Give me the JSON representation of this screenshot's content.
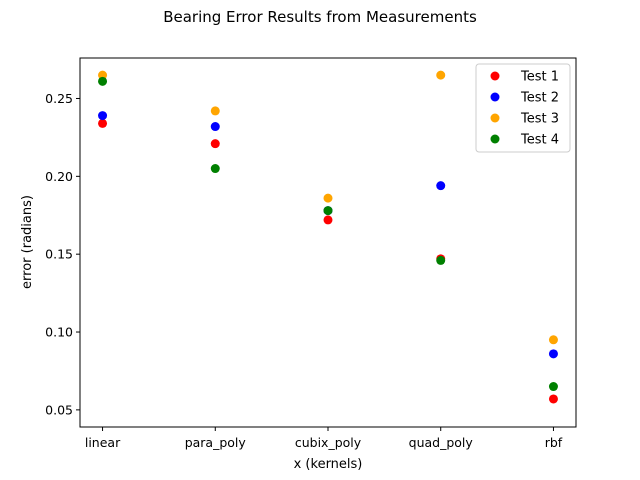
{
  "chart_data": {
    "type": "scatter",
    "title": "Bearing Error Results from Measurements",
    "xlabel": "x (kernels)",
    "ylabel": "error (radians)",
    "categories": [
      "linear",
      "para_poly",
      "cubix_poly",
      "quad_poly",
      "rbf"
    ],
    "ylim": [
      0.039,
      0.276
    ],
    "yticks": [
      "0.05",
      "0.10",
      "0.15",
      "0.20",
      "0.25"
    ],
    "grid": false,
    "legend_position": "top-right",
    "series": [
      {
        "name": "Test 1",
        "color": "#ff0000",
        "values": [
          0.234,
          0.221,
          0.172,
          0.147,
          0.057
        ]
      },
      {
        "name": "Test 2",
        "color": "#0000ff",
        "values": [
          0.239,
          0.232,
          0.178,
          0.194,
          0.086
        ]
      },
      {
        "name": "Test 3",
        "color": "#ffa500",
        "values": [
          0.265,
          0.242,
          0.186,
          0.265,
          0.095
        ]
      },
      {
        "name": "Test 4",
        "color": "#008000",
        "values": [
          0.261,
          0.205,
          0.178,
          0.146,
          0.065
        ]
      }
    ]
  }
}
